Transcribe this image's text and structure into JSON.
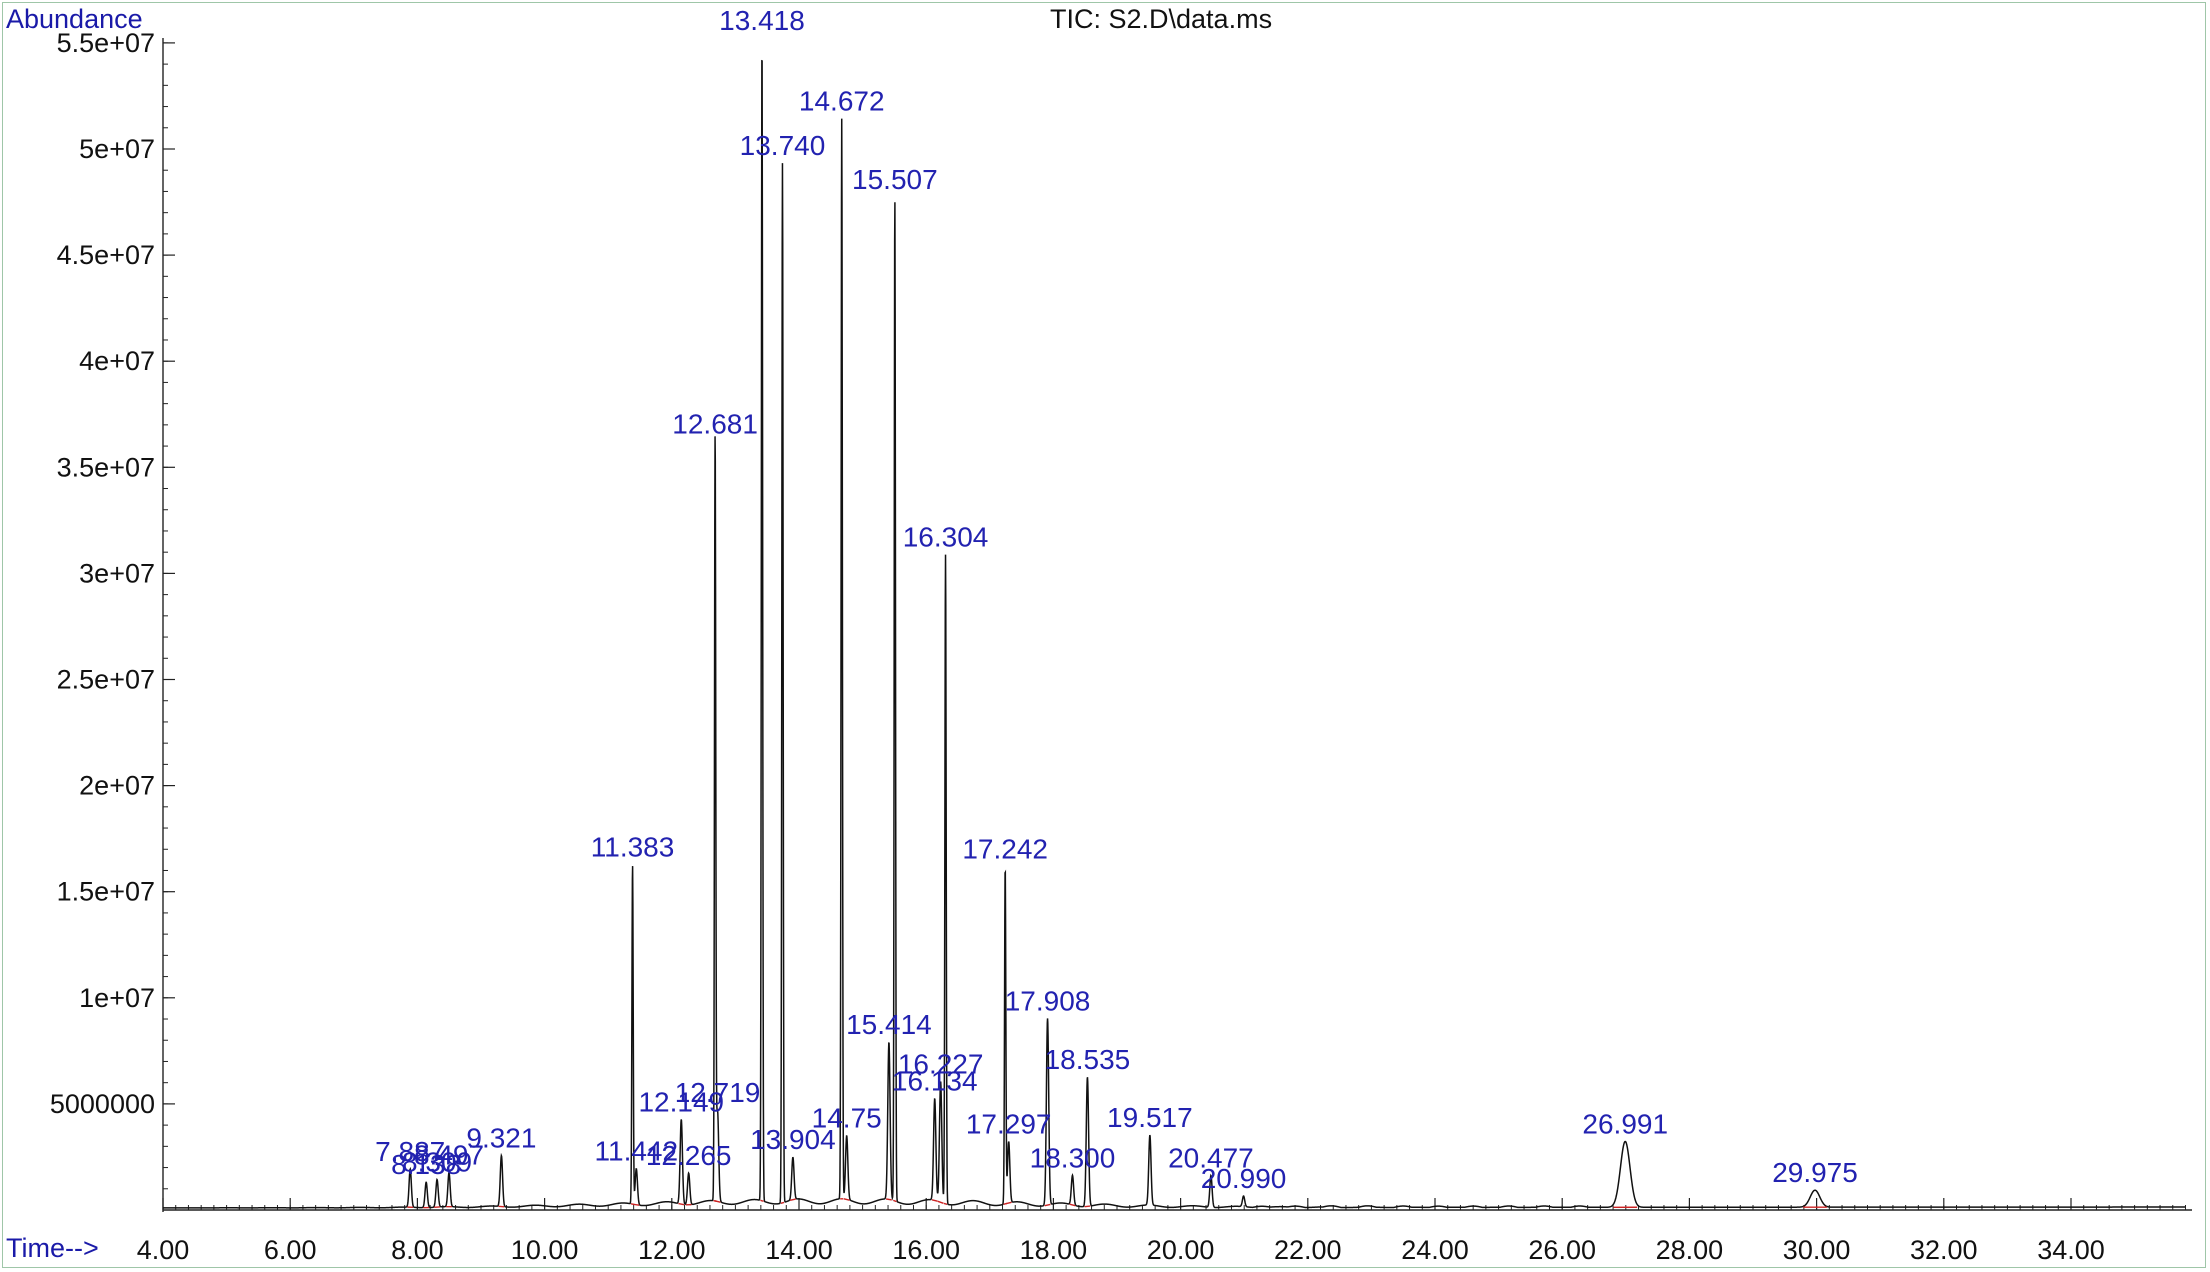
{
  "chart_data": {
    "type": "line",
    "title": "TIC: S2.D\\data.ms",
    "xlabel": "Time-->",
    "ylabel": "Abundance",
    "xlim": [
      4.0,
      35.8
    ],
    "ylim": [
      0,
      55500000
    ],
    "x_ticks": [
      {
        "value": 4,
        "label": "4.00"
      },
      {
        "value": 6,
        "label": "6.00"
      },
      {
        "value": 8,
        "label": "8.00"
      },
      {
        "value": 10,
        "label": "10.00"
      },
      {
        "value": 12,
        "label": "12.00"
      },
      {
        "value": 14,
        "label": "14.00"
      },
      {
        "value": 16,
        "label": "16.00"
      },
      {
        "value": 18,
        "label": "18.00"
      },
      {
        "value": 20,
        "label": "20.00"
      },
      {
        "value": 22,
        "label": "22.00"
      },
      {
        "value": 24,
        "label": "24.00"
      },
      {
        "value": 26,
        "label": "26.00"
      },
      {
        "value": 28,
        "label": "28.00"
      },
      {
        "value": 30,
        "label": "30.00"
      },
      {
        "value": 32,
        "label": "32.00"
      },
      {
        "value": 34,
        "label": "34.00"
      }
    ],
    "y_ticks": [
      {
        "value": 5000000,
        "label": "5000000"
      },
      {
        "value": 10000000,
        "label": "1e+07"
      },
      {
        "value": 15000000,
        "label": "1.5e+07"
      },
      {
        "value": 20000000,
        "label": "2e+07"
      },
      {
        "value": 25000000,
        "label": "2.5e+07"
      },
      {
        "value": 30000000,
        "label": "3e+07"
      },
      {
        "value": 35000000,
        "label": "3.5e+07"
      },
      {
        "value": 40000000,
        "label": "4e+07"
      },
      {
        "value": 45000000,
        "label": "4.5e+07"
      },
      {
        "value": 50000000,
        "label": "5e+07"
      },
      {
        "value": 55000000,
        "label": "5.5e+07"
      }
    ],
    "series": [
      {
        "name": "TIC",
        "color": "#111111",
        "integration_color": "#cc2222",
        "peaks": [
          {
            "rt": 7.887,
            "height": 1800000,
            "label": "7.887"
          },
          {
            "rt": 8.138,
            "height": 1200000,
            "label": "8.138"
          },
          {
            "rt": 8.309,
            "height": 1300000,
            "label": "8.309"
          },
          {
            "rt": 8.497,
            "height": 1600000,
            "label": "8.497"
          },
          {
            "rt": 9.321,
            "height": 2400000,
            "label": "9.321"
          },
          {
            "rt": 11.383,
            "height": 16000000,
            "label": "11.383"
          },
          {
            "rt": 11.442,
            "height": 1700000,
            "label": "11.442"
          },
          {
            "rt": 12.149,
            "height": 4000000,
            "label": "12.149"
          },
          {
            "rt": 12.265,
            "height": 1500000,
            "label": "12.265"
          },
          {
            "rt": 12.681,
            "height": 35800000,
            "label": "12.681"
          },
          {
            "rt": 12.719,
            "height": 4300000,
            "label": "12.719"
          },
          {
            "rt": 13.418,
            "height": 54800000,
            "label": "13.418"
          },
          {
            "rt": 13.74,
            "height": 49000000,
            "label": "13.740"
          },
          {
            "rt": 13.904,
            "height": 2000000,
            "label": "13.904"
          },
          {
            "rt": 14.672,
            "height": 50900000,
            "label": "14.672"
          },
          {
            "rt": 14.75,
            "height": 3000000,
            "label": "14.75"
          },
          {
            "rt": 15.414,
            "height": 7400000,
            "label": "15.414"
          },
          {
            "rt": 15.507,
            "height": 47300000,
            "label": "15.507"
          },
          {
            "rt": 16.134,
            "height": 4800000,
            "label": "16.134"
          },
          {
            "rt": 16.227,
            "height": 5700000,
            "label": "16.227"
          },
          {
            "rt": 16.304,
            "height": 30600000,
            "label": "16.304"
          },
          {
            "rt": 17.242,
            "height": 15900000,
            "label": "17.242"
          },
          {
            "rt": 17.297,
            "height": 2900000,
            "label": "17.297"
          },
          {
            "rt": 17.908,
            "height": 8800000,
            "label": "17.908"
          },
          {
            "rt": 18.3,
            "height": 1400000,
            "label": "18.300"
          },
          {
            "rt": 18.535,
            "height": 6100000,
            "label": "18.535"
          },
          {
            "rt": 19.517,
            "height": 3300000,
            "label": "19.517"
          },
          {
            "rt": 20.477,
            "height": 1500000,
            "label": "20.477"
          },
          {
            "rt": 20.99,
            "height": 500000,
            "label": "20.990"
          },
          {
            "rt": 26.991,
            "height": 3100000,
            "label": "26.991"
          },
          {
            "rt": 29.975,
            "height": 800000,
            "label": "29.975"
          }
        ],
        "annotation_labels": [
          "7.887",
          "8.138",
          "8.309",
          "8.497",
          "9.321",
          "11.383",
          "11.442",
          "12.149",
          "12.265",
          "12.681",
          "12.719",
          "13.418",
          "13.740",
          "13.904",
          "14.672",
          "14.75",
          "15.414",
          "15.507",
          "16.134",
          "16.227",
          "16.304",
          "17.242",
          "17.297",
          "17.908",
          "18.300",
          "18.535",
          "19.517",
          "20.477",
          "20.990",
          "26.991",
          "29.975"
        ]
      }
    ]
  }
}
